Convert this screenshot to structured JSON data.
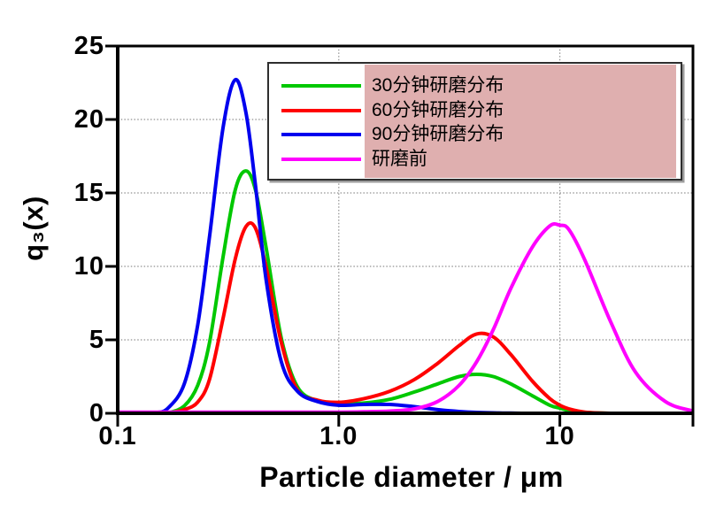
{
  "page": {
    "background": "#ffffff"
  },
  "chart_data": {
    "type": "line",
    "title": "",
    "xlabel": "Particle diameter / μm",
    "ylabel": "q₃(x)",
    "x_scale": "log",
    "xlim": [
      0.1,
      40
    ],
    "ylim": [
      0,
      25
    ],
    "grid": {
      "x_values": [
        1,
        10
      ],
      "y_values": [
        5,
        10,
        15,
        20
      ],
      "style": "dotted",
      "color": "#909090"
    },
    "x_ticks": [
      {
        "value": 0.1,
        "label": "0.1"
      },
      {
        "value": 1,
        "label": "1.0"
      },
      {
        "value": 10,
        "label": "10"
      },
      {
        "value": 40,
        "label": ""
      }
    ],
    "y_ticks": [
      {
        "value": 0,
        "label": "0"
      },
      {
        "value": 5,
        "label": "5"
      },
      {
        "value": 10,
        "label": "10"
      },
      {
        "value": 15,
        "label": "15"
      },
      {
        "value": 20,
        "label": "20"
      },
      {
        "value": 25,
        "label": "25"
      }
    ],
    "x": [
      0.1,
      0.12,
      0.15,
      0.17,
      0.2,
      0.23,
      0.26,
      0.3,
      0.34,
      0.38,
      0.42,
      0.47,
      0.55,
      0.65,
      0.8,
      1.0,
      1.3,
      1.7,
      2.2,
      2.8,
      3.5,
      4.2,
      5.0,
      6.0,
      7.5,
      9.0,
      10,
      11,
      13,
      17,
      22,
      30,
      40
    ],
    "series": [
      {
        "id": "30min-grinding",
        "name": "30分钟研磨分布",
        "color": "#00c800",
        "values": [
          0,
          0,
          0,
          0.05,
          0.5,
          1.9,
          4.8,
          10.7,
          15.2,
          16.5,
          15.2,
          11.2,
          5.1,
          1.8,
          0.85,
          0.65,
          0.7,
          0.95,
          1.45,
          2.0,
          2.5,
          2.65,
          2.5,
          2.0,
          1.2,
          0.55,
          0.35,
          0.2,
          0.06,
          0,
          0,
          0,
          0
        ]
      },
      {
        "id": "60min-grinding",
        "name": "60分钟研磨分布",
        "color": "#ff0000",
        "values": [
          0,
          0,
          0,
          0.02,
          0.25,
          0.76,
          2.3,
          6.5,
          10.5,
          12.7,
          12.6,
          9.9,
          4.8,
          1.6,
          0.9,
          0.75,
          1.0,
          1.5,
          2.3,
          3.4,
          4.6,
          5.4,
          5.2,
          4.0,
          2.2,
          1.0,
          0.55,
          0.3,
          0.08,
          0,
          0,
          0,
          0
        ]
      },
      {
        "id": "90min-grinding",
        "name": "90分钟研磨分布",
        "color": "#0000ee",
        "values": [
          0,
          0,
          0.05,
          0.4,
          2.0,
          6.0,
          12.0,
          19.5,
          22.7,
          20.5,
          15.5,
          9.0,
          3.5,
          1.5,
          0.8,
          0.55,
          0.6,
          0.6,
          0.45,
          0.25,
          0.12,
          0.06,
          0.03,
          0.01,
          0,
          0,
          0,
          0,
          0,
          0,
          0,
          0,
          0
        ]
      },
      {
        "id": "before-grinding",
        "name": "研磨前",
        "color": "#ff00ff",
        "values": [
          0.08,
          0.08,
          0.08,
          0.08,
          0.08,
          0.08,
          0.08,
          0.08,
          0.08,
          0.08,
          0.08,
          0.08,
          0.08,
          0.08,
          0.08,
          0.08,
          0.1,
          0.15,
          0.3,
          0.8,
          1.9,
          3.5,
          5.7,
          8.5,
          11.3,
          12.75,
          12.8,
          12.5,
          10.4,
          6.2,
          2.8,
          0.8,
          0.15
        ]
      }
    ],
    "legend": {
      "position": "top",
      "highlight_color": "#dfafaf",
      "border_color": "#2e2e2e",
      "line_thickness": 4
    },
    "frame_color": "#000000",
    "curve_width": 4
  }
}
